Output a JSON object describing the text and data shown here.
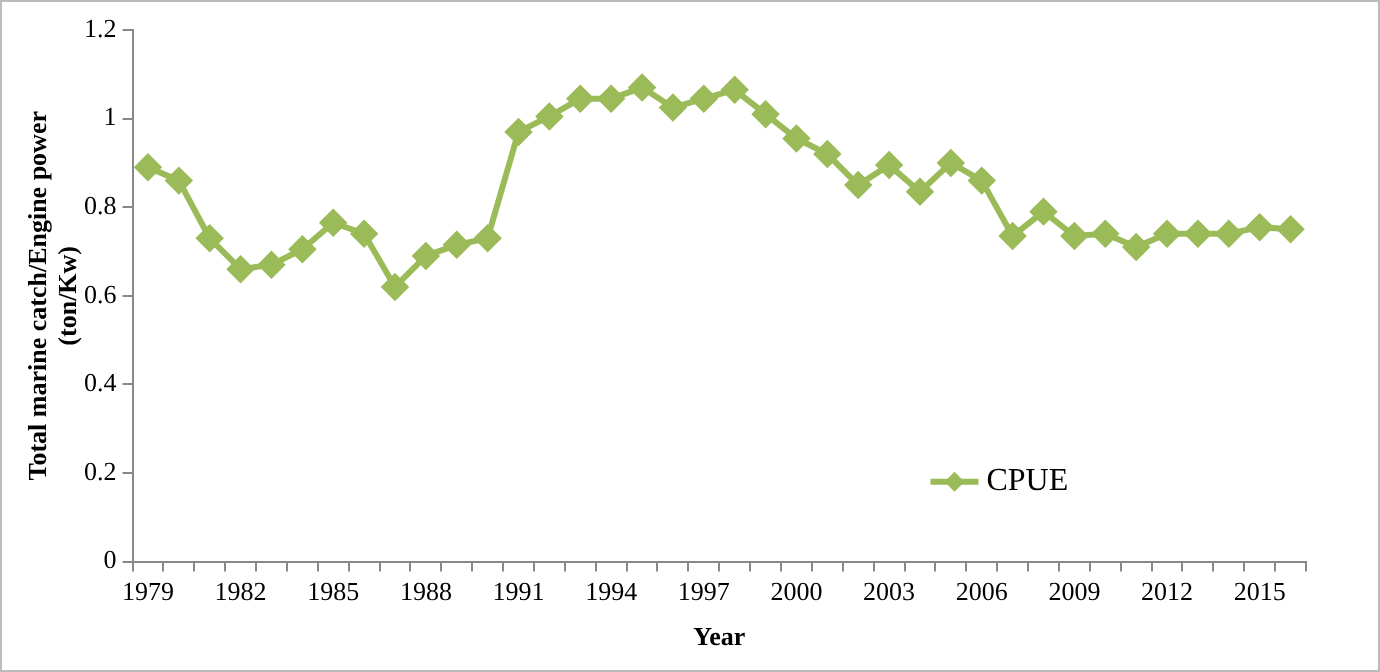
{
  "chart_data": {
    "type": "line",
    "xlabel": "Year",
    "ylabel": "Total marine catch/Engine power (ton/Kw)",
    "categories": [
      "1979",
      null,
      null,
      "1982",
      null,
      null,
      "1985",
      null,
      null,
      "1988",
      null,
      null,
      "1991",
      null,
      null,
      "1994",
      null,
      null,
      "1997",
      null,
      null,
      "2000",
      null,
      null,
      "2003",
      null,
      null,
      "2006",
      null,
      null,
      "2009",
      null,
      null,
      "2012",
      null,
      null,
      "2015",
      null
    ],
    "series": [
      {
        "name": "CPUE",
        "color": "#9bbb59",
        "values": [
          0.89,
          0.86,
          0.73,
          0.66,
          0.67,
          0.705,
          0.765,
          0.74,
          0.62,
          0.69,
          0.715,
          0.73,
          0.97,
          1.005,
          1.045,
          1.045,
          1.07,
          1.025,
          1.045,
          1.065,
          1.01,
          0.955,
          0.92,
          0.85,
          0.895,
          0.835,
          0.9,
          0.86,
          0.735,
          0.79,
          0.735,
          0.74,
          0.71,
          0.74,
          0.74,
          0.74,
          0.755,
          0.75
        ]
      }
    ],
    "ylim": [
      0,
      1.2
    ],
    "yticks": [
      0,
      0.2,
      0.4,
      0.6,
      0.8,
      1,
      1.2
    ],
    "grid": false,
    "legend": "bottom right",
    "marker": "diamond",
    "line_style": "solid"
  }
}
